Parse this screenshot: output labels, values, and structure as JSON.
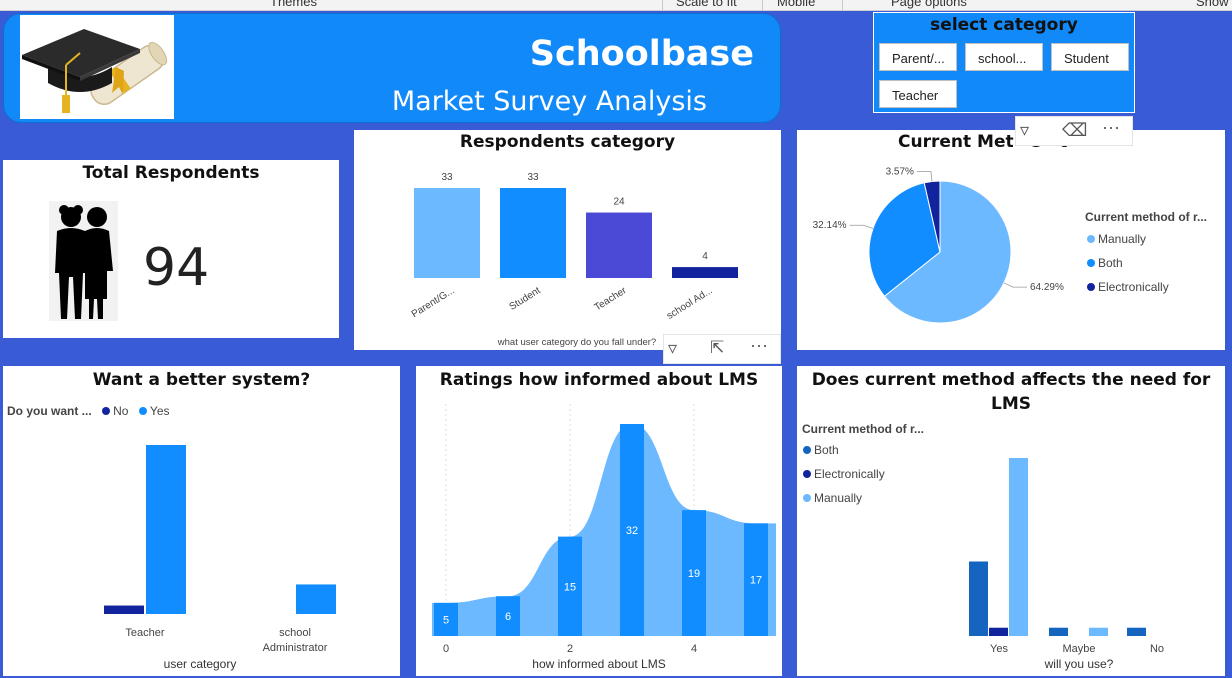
{
  "menu": {
    "themes": "Themes",
    "scale": "Scale to fit",
    "mobile": "Mobile",
    "page_options": "Page options",
    "show": "Show"
  },
  "header": {
    "brand": "Schoolbase",
    "subtitle": "Market Survey Analysis",
    "logo_icon": "graduation-cap-diploma-icon"
  },
  "slicer": {
    "title": "select category",
    "chips": [
      "Parent/...",
      "school...",
      "Student",
      "Teacher"
    ]
  },
  "total": {
    "title": "Total Respondents",
    "value": "94",
    "icon": "students-silhouette-icon"
  },
  "respondents": {
    "title": "Respondents category",
    "xlabel": "what user category do you fall under?",
    "categories": [
      "Parent/G...",
      "Student",
      "Teacher",
      "school Ad..."
    ],
    "values": [
      33,
      33,
      24,
      4
    ],
    "colors": [
      "#6cb9ff",
      "#118dff",
      "#4a4ad6",
      "#12239e"
    ]
  },
  "method": {
    "title": "Current Met   s   t",
    "legend_title": "Current method of r...",
    "items": [
      {
        "label": "Manually",
        "pct": "64.29%",
        "value": 64.29,
        "color": "#6cb9ff"
      },
      {
        "label": "Both",
        "pct": "32.14%",
        "value": 32.14,
        "color": "#118dff"
      },
      {
        "label": "Electronically",
        "pct": "3.57%",
        "value": 3.57,
        "color": "#12239e"
      }
    ]
  },
  "better": {
    "title": "Want a better system?",
    "legend_title": "Do you want ...",
    "legend": [
      {
        "label": "No",
        "color": "#12239e"
      },
      {
        "label": "Yes",
        "color": "#118dff"
      }
    ],
    "xlabel": "user category",
    "categories": [
      "Teacher",
      "school Administrator"
    ],
    "cat_lines": [
      [
        "Teacher"
      ],
      [
        "school",
        "Administrator"
      ]
    ]
  },
  "ratings": {
    "title": "Ratings how informed about LMS",
    "xlabel": "how informed about LMS",
    "xticks": [
      "0",
      "2",
      "4"
    ]
  },
  "affects": {
    "title_line1": "Does current method affects the need for",
    "title_line2": "LMS",
    "legend_title": "Current method of r...",
    "legend": [
      {
        "label": "Both",
        "color": "#1565c0"
      },
      {
        "label": "Electronically",
        "color": "#12239e"
      },
      {
        "label": "Manually",
        "color": "#6cb9ff"
      }
    ],
    "xlabel": "will you use?",
    "categories": [
      "Yes",
      "Maybe",
      "No"
    ]
  },
  "toolbars": {
    "filter_icon": "filter-icon",
    "eraser_icon": "eraser-icon",
    "focus_icon": "focus-mode-icon",
    "more_icon": "more-options-icon"
  },
  "chart_data": [
    {
      "type": "bar",
      "title": "Respondents category",
      "xlabel": "what user category do you fall under?",
      "categories": [
        "Parent/G...",
        "Student",
        "Teacher",
        "school Ad..."
      ],
      "values": [
        33,
        33,
        24,
        4
      ]
    },
    {
      "type": "pie",
      "title": "Current Met   s   t",
      "legend_title": "Current method of r...",
      "labels": [
        "Manually",
        "Both",
        "Electronically"
      ],
      "values": [
        64.29,
        32.14,
        3.57
      ]
    },
    {
      "type": "bar",
      "title": "Want a better system?",
      "xlabel": "user category",
      "legend_title": "Do you want ...",
      "categories": [
        "Teacher",
        "school Administrator"
      ],
      "series": [
        {
          "name": "No",
          "values": [
            2,
            0
          ]
        },
        {
          "name": "Yes",
          "values": [
            40,
            7
          ]
        }
      ]
    },
    {
      "type": "area",
      "title": "Ratings how informed about LMS",
      "xlabel": "how informed about LMS",
      "x": [
        0,
        1,
        2,
        3,
        4,
        5
      ],
      "values": [
        5,
        6,
        15,
        32,
        19,
        17
      ],
      "xlim": [
        0,
        5
      ]
    },
    {
      "type": "bar",
      "title": "Does current method affects the need for LMS",
      "xlabel": "will you use?",
      "legend_title": "Current method of r...",
      "categories": [
        "Yes",
        "Maybe",
        "No"
      ],
      "series": [
        {
          "name": "Both",
          "values": [
            18,
            2,
            2
          ]
        },
        {
          "name": "Electronically",
          "values": [
            2,
            0,
            0
          ]
        },
        {
          "name": "Manually",
          "values": [
            43,
            2,
            0
          ]
        }
      ]
    }
  ]
}
